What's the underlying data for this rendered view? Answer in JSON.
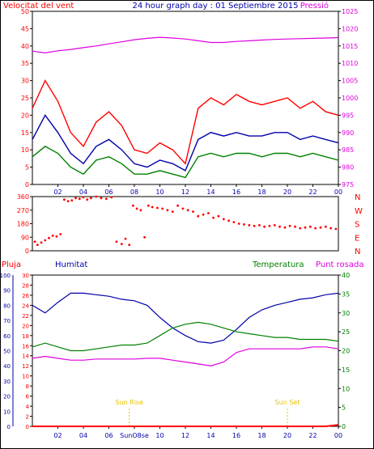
{
  "header": {
    "left_label": "Velocitat del vent",
    "center_title": "24 hour graph day : 01 Septiembre 2015",
    "right_label": "Pressió"
  },
  "colors": {
    "red": "#ff0000",
    "blue": "#0000aa",
    "green": "#008000",
    "magenta": "#e000e0",
    "yellow": "#e8c000",
    "frame": "#000000",
    "grid": "#cccccc"
  },
  "x_ticks": [
    "02",
    "04",
    "06",
    "08",
    "10",
    "12",
    "14",
    "16",
    "18",
    "20",
    "22",
    "00"
  ],
  "x_ticks_bottom": [
    "02",
    "04",
    "06",
    "SunO8se",
    "10",
    "12",
    "14",
    "16",
    "18",
    "20",
    "22",
    "00"
  ],
  "chart_data": [
    {
      "type": "line",
      "name": "wind-pressure",
      "y_left_ticks": [
        "0",
        "5",
        "10",
        "15",
        "20",
        "25",
        "30",
        "35",
        "40",
        "45",
        "50"
      ],
      "y_right_ticks": [
        "975",
        "980",
        "985",
        "990",
        "995",
        "1000",
        "1005",
        "1010",
        "1015",
        "1020",
        "1025"
      ],
      "ylim_left": [
        0,
        50
      ],
      "ylim_right": [
        975,
        1025
      ],
      "x": [
        0,
        1,
        2,
        3,
        4,
        5,
        6,
        7,
        8,
        9,
        10,
        11,
        12,
        13,
        14,
        15,
        16,
        17,
        18,
        19,
        20,
        21,
        22,
        23,
        24
      ],
      "series": [
        {
          "key": "gust",
          "color": "red",
          "axis": "left",
          "values": [
            22,
            30,
            24,
            15,
            11,
            18,
            21,
            17,
            10,
            9,
            12,
            10,
            6,
            22,
            25,
            23,
            26,
            24,
            23,
            24,
            25,
            22,
            24,
            21,
            20
          ]
        },
        {
          "key": "speed",
          "color": "blue",
          "axis": "left",
          "values": [
            13,
            20,
            15,
            9,
            6,
            11,
            13,
            10,
            6,
            5,
            7,
            6,
            4,
            13,
            15,
            14,
            15,
            14,
            14,
            15,
            15,
            13,
            14,
            13,
            12
          ]
        },
        {
          "key": "min",
          "color": "green",
          "axis": "left",
          "values": [
            8,
            11,
            9,
            5,
            3,
            7,
            8,
            6,
            3,
            3,
            4,
            3,
            2,
            8,
            9,
            8,
            9,
            9,
            8,
            9,
            9,
            8,
            9,
            8,
            7
          ]
        },
        {
          "key": "pressure",
          "color": "magenta",
          "axis": "right",
          "values": [
            1013.5,
            1013,
            1013.6,
            1014,
            1014.5,
            1015,
            1015.6,
            1016.2,
            1016.8,
            1017.2,
            1017.5,
            1017.3,
            1017,
            1016.5,
            1016,
            1016,
            1016.3,
            1016.5,
            1016.7,
            1016.9,
            1017,
            1017.1,
            1017.2,
            1017.3,
            1017.4
          ]
        }
      ]
    },
    {
      "type": "scatter",
      "name": "wind-direction",
      "y_left_ticks": [
        "0",
        "90",
        "180",
        "270",
        "360"
      ],
      "y_right_ticks": [
        "N",
        "E",
        "S",
        "W",
        "N"
      ],
      "ylim": [
        0,
        360
      ],
      "x": [
        0.2,
        0.4,
        0.7,
        1.0,
        1.3,
        1.6,
        1.9,
        2.2,
        2.5,
        2.8,
        3.1,
        3.4,
        3.7,
        4.0,
        4.3,
        4.6,
        5.0,
        5.4,
        5.8,
        6.2,
        6.6,
        7.0,
        7.3,
        7.6,
        7.9,
        8.2,
        8.5,
        8.8,
        9.1,
        9.4,
        9.8,
        10.2,
        10.6,
        11.0,
        11.4,
        11.8,
        12.2,
        12.6,
        13.0,
        13.4,
        13.8,
        14.2,
        14.6,
        15.0,
        15.4,
        15.8,
        16.2,
        16.6,
        17.0,
        17.4,
        17.8,
        18.2,
        18.6,
        19.0,
        19.4,
        19.8,
        20.2,
        20.6,
        21.0,
        21.4,
        21.8,
        22.2,
        22.6,
        23.0,
        23.4,
        23.8
      ],
      "values": [
        60,
        40,
        55,
        70,
        85,
        100,
        95,
        110,
        340,
        330,
        335,
        350,
        345,
        355,
        340,
        350,
        360,
        350,
        345,
        355,
        60,
        45,
        80,
        40,
        300,
        280,
        270,
        90,
        300,
        290,
        285,
        280,
        270,
        260,
        300,
        280,
        270,
        260,
        230,
        240,
        250,
        220,
        230,
        210,
        200,
        190,
        180,
        175,
        170,
        165,
        170,
        160,
        165,
        170,
        160,
        155,
        165,
        160,
        150,
        155,
        160,
        150,
        155,
        160,
        150,
        145
      ]
    },
    {
      "type": "line",
      "name": "humidity-temperature",
      "labels": {
        "rain": "Pluja",
        "humidity": "Humitat",
        "temperature": "Temperatura",
        "dewpoint": "Punt rosada"
      },
      "y_rain_ticks": [
        "0",
        "10",
        "20",
        "30",
        "40",
        "50",
        "60",
        "70",
        "80",
        "90",
        "100"
      ],
      "y_left_ticks": [
        "0",
        "2",
        "4",
        "6",
        "8",
        "10",
        "12",
        "14",
        "16",
        "18",
        "20",
        "22",
        "24",
        "26",
        "28",
        "30"
      ],
      "y_right_ticks": [
        "0",
        "5",
        "10",
        "15",
        "20",
        "25",
        "30",
        "35",
        "40"
      ],
      "ylim_humidity": [
        0,
        100
      ],
      "ylim_temp": [
        0,
        40
      ],
      "x": [
        0,
        1,
        2,
        3,
        4,
        5,
        6,
        7,
        8,
        9,
        10,
        11,
        12,
        13,
        14,
        15,
        16,
        17,
        18,
        19,
        20,
        21,
        22,
        23,
        24
      ],
      "series": [
        {
          "key": "humidity",
          "color": "blue",
          "axis": "humidity",
          "values": [
            80,
            75,
            82,
            88,
            88,
            87,
            86,
            84,
            83,
            80,
            72,
            65,
            60,
            56,
            55,
            57,
            64,
            72,
            77,
            80,
            82,
            84,
            85,
            87,
            88
          ]
        },
        {
          "key": "temperature",
          "color": "green",
          "axis": "temp",
          "values": [
            21,
            22,
            21,
            20,
            20,
            20.5,
            21,
            21.5,
            21.5,
            22,
            24,
            26,
            27,
            27.5,
            27,
            26,
            25,
            24.5,
            24,
            23.5,
            23.5,
            23,
            23,
            23,
            22.5
          ]
        },
        {
          "key": "dewpoint",
          "color": "magenta",
          "axis": "temp",
          "values": [
            18,
            18.5,
            18,
            17.5,
            17.5,
            17.8,
            17.8,
            17.8,
            17.8,
            18,
            18,
            17.5,
            17,
            16.5,
            16,
            17,
            19.5,
            20.5,
            20.5,
            20.5,
            20.5,
            20.5,
            21,
            21,
            20.5
          ]
        },
        {
          "key": "rain",
          "color": "red",
          "axis": "humidity",
          "values": [
            0,
            0,
            0,
            0,
            0,
            0,
            0,
            0,
            0,
            0,
            0,
            0,
            0,
            0,
            0,
            0,
            0,
            0,
            0,
            0,
            0,
            0,
            0,
            0,
            1
          ]
        }
      ],
      "annotations": [
        {
          "label": "Sun Rise",
          "x": 7.6
        },
        {
          "label": "Sun Set",
          "x": 20.0
        }
      ]
    }
  ]
}
